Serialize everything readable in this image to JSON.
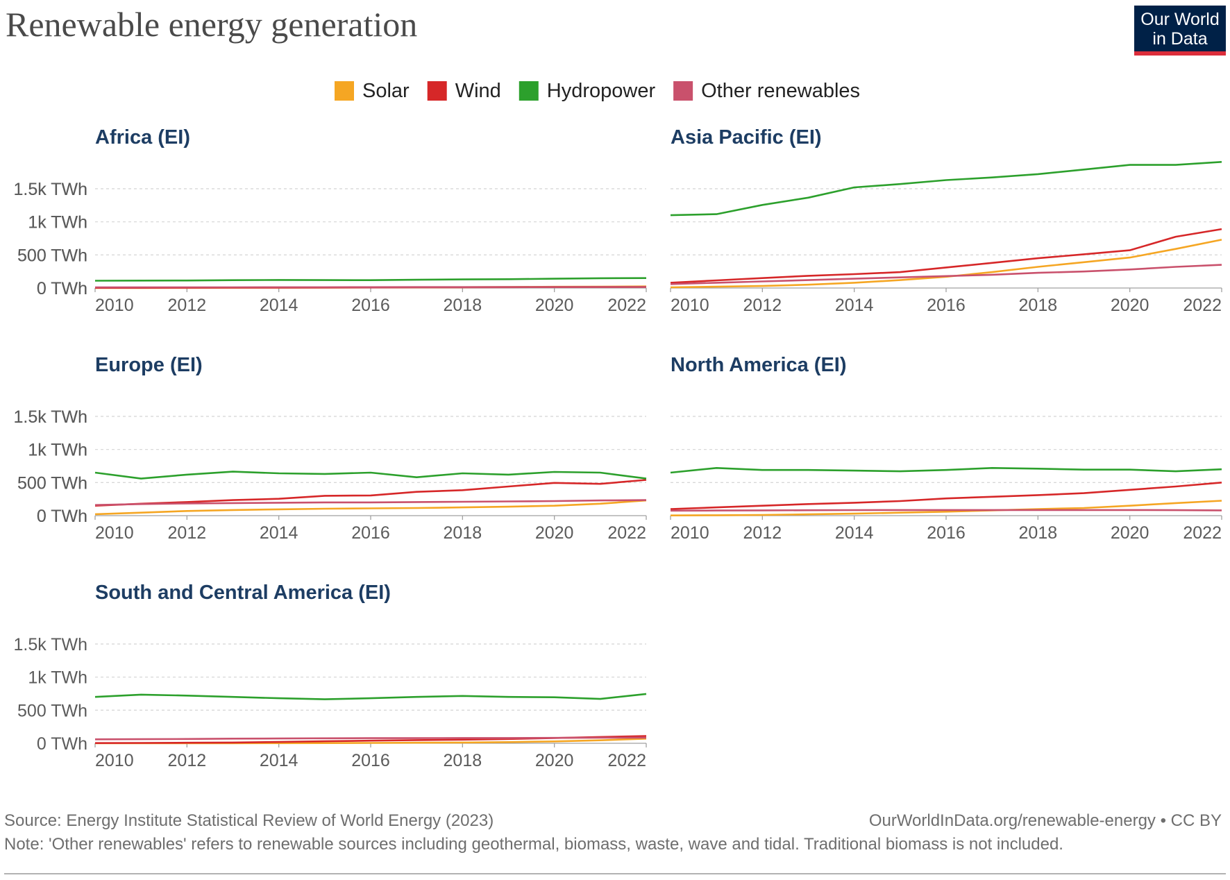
{
  "title": "Renewable energy generation",
  "logo": [
    "Our World",
    "in Data"
  ],
  "source": "Source: Energy Institute Statistical Review of World Energy (2023)",
  "url": "OurWorldInData.org/renewable-energy • CC BY",
  "note": "Note: 'Other renewables' refers to renewable sources including geothermal, biomass, waste, wave and tidal. Traditional biomass is not included.",
  "chart_data": [
    {
      "type": "line",
      "title": "Africa (EI)",
      "x": [
        2010,
        2011,
        2012,
        2013,
        2014,
        2015,
        2016,
        2017,
        2018,
        2019,
        2020,
        2021,
        2022
      ],
      "series": [
        {
          "name": "Solar",
          "color": "#f5a623",
          "values": [
            0,
            1,
            2,
            3,
            4,
            6,
            8,
            10,
            13,
            16,
            19,
            21,
            24
          ]
        },
        {
          "name": "Wind",
          "color": "#d62728",
          "values": [
            3,
            3,
            4,
            5,
            6,
            7,
            8,
            10,
            12,
            13,
            14,
            15,
            16
          ]
        },
        {
          "name": "Hydropower",
          "color": "#2ca02c",
          "values": [
            110,
            112,
            113,
            118,
            122,
            120,
            118,
            125,
            130,
            133,
            140,
            148,
            150
          ]
        },
        {
          "name": "Other renewables",
          "color": "#c9516c",
          "values": [
            10,
            10,
            11,
            11,
            12,
            12,
            13,
            14,
            14,
            15,
            15,
            16,
            16
          ]
        }
      ],
      "xlim": [
        2010,
        2022
      ],
      "xticks": [
        2010,
        2012,
        2014,
        2016,
        2018,
        2020,
        2022
      ],
      "ylim": [
        0,
        1950
      ],
      "yticks": [
        {
          "value": 0,
          "label": "0 TWh"
        },
        {
          "value": 500,
          "label": "500 TWh"
        },
        {
          "value": 1000,
          "label": "1k TWh"
        },
        {
          "value": 1500,
          "label": "1.5k TWh"
        }
      ],
      "grid": true
    },
    {
      "type": "line",
      "title": "Asia Pacific (EI)",
      "x": [
        2010,
        2011,
        2012,
        2013,
        2014,
        2015,
        2016,
        2017,
        2018,
        2019,
        2020,
        2021,
        2022
      ],
      "series": [
        {
          "name": "Solar",
          "color": "#f5a623",
          "values": [
            10,
            20,
            30,
            50,
            80,
            120,
            170,
            240,
            320,
            390,
            460,
            590,
            730
          ]
        },
        {
          "name": "Wind",
          "color": "#d62728",
          "values": [
            80,
            115,
            150,
            185,
            210,
            240,
            310,
            380,
            450,
            510,
            570,
            775,
            890
          ]
        },
        {
          "name": "Hydropower",
          "color": "#2ca02c",
          "values": [
            1100,
            1115,
            1255,
            1365,
            1520,
            1570,
            1630,
            1670,
            1720,
            1790,
            1860,
            1860,
            1905
          ]
        },
        {
          "name": "Other renewables",
          "color": "#c9516c",
          "values": [
            60,
            80,
            100,
            120,
            140,
            160,
            180,
            200,
            230,
            250,
            280,
            320,
            350
          ]
        }
      ],
      "xlim": [
        2010,
        2022
      ],
      "xticks": [
        2010,
        2012,
        2014,
        2016,
        2018,
        2020,
        2022
      ],
      "ylim": [
        0,
        1950
      ],
      "yticks": [
        {
          "value": 0,
          "label": "0 TWh"
        },
        {
          "value": 500,
          "label": "500 TWh"
        },
        {
          "value": 1000,
          "label": "1k TWh"
        },
        {
          "value": 1500,
          "label": "1.5k TWh"
        }
      ],
      "grid": true
    },
    {
      "type": "line",
      "title": "Europe (EI)",
      "x": [
        2010,
        2011,
        2012,
        2013,
        2014,
        2015,
        2016,
        2017,
        2018,
        2019,
        2020,
        2021,
        2022
      ],
      "series": [
        {
          "name": "Solar",
          "color": "#f5a623",
          "values": [
            22,
            45,
            70,
            85,
            95,
            105,
            110,
            115,
            125,
            135,
            150,
            180,
            230
          ]
        },
        {
          "name": "Wind",
          "color": "#d62728",
          "values": [
            150,
            180,
            205,
            235,
            255,
            300,
            305,
            360,
            385,
            440,
            495,
            480,
            540
          ]
        },
        {
          "name": "Hydropower",
          "color": "#2ca02c",
          "values": [
            650,
            560,
            620,
            665,
            640,
            630,
            650,
            580,
            640,
            620,
            660,
            650,
            560
          ]
        },
        {
          "name": "Other renewables",
          "color": "#c9516c",
          "values": [
            160,
            175,
            185,
            190,
            195,
            200,
            200,
            205,
            210,
            215,
            220,
            230,
            235
          ]
        }
      ],
      "xlim": [
        2010,
        2022
      ],
      "xticks": [
        2010,
        2012,
        2014,
        2016,
        2018,
        2020,
        2022
      ],
      "ylim": [
        0,
        1950
      ],
      "yticks": [
        {
          "value": 0,
          "label": "0 TWh"
        },
        {
          "value": 500,
          "label": "500 TWh"
        },
        {
          "value": 1000,
          "label": "1k TWh"
        },
        {
          "value": 1500,
          "label": "1.5k TWh"
        }
      ],
      "grid": true
    },
    {
      "type": "line",
      "title": "North America (EI)",
      "x": [
        2010,
        2011,
        2012,
        2013,
        2014,
        2015,
        2016,
        2017,
        2018,
        2019,
        2020,
        2021,
        2022
      ],
      "series": [
        {
          "name": "Solar",
          "color": "#f5a623",
          "values": [
            3,
            6,
            10,
            20,
            30,
            45,
            60,
            80,
            100,
            115,
            150,
            190,
            225
          ]
        },
        {
          "name": "Wind",
          "color": "#d62728",
          "values": [
            100,
            125,
            150,
            175,
            195,
            220,
            260,
            285,
            310,
            340,
            390,
            440,
            500
          ]
        },
        {
          "name": "Hydropower",
          "color": "#2ca02c",
          "values": [
            650,
            720,
            690,
            690,
            680,
            670,
            690,
            720,
            710,
            695,
            695,
            670,
            700
          ]
        },
        {
          "name": "Other renewables",
          "color": "#c9516c",
          "values": [
            75,
            78,
            80,
            82,
            84,
            85,
            85,
            85,
            85,
            85,
            85,
            83,
            80
          ]
        }
      ],
      "xlim": [
        2010,
        2022
      ],
      "xticks": [
        2010,
        2012,
        2014,
        2016,
        2018,
        2020,
        2022
      ],
      "ylim": [
        0,
        1950
      ],
      "yticks": [
        {
          "value": 0,
          "label": "0 TWh"
        },
        {
          "value": 500,
          "label": "500 TWh"
        },
        {
          "value": 1000,
          "label": "1k TWh"
        },
        {
          "value": 1500,
          "label": "1.5k TWh"
        }
      ],
      "grid": true
    },
    {
      "type": "line",
      "title": "South and Central America (EI)",
      "x": [
        2010,
        2011,
        2012,
        2013,
        2014,
        2015,
        2016,
        2017,
        2018,
        2019,
        2020,
        2021,
        2022
      ],
      "series": [
        {
          "name": "Solar",
          "color": "#f5a623",
          "values": [
            0,
            0,
            0,
            1,
            2,
            3,
            5,
            8,
            12,
            18,
            28,
            45,
            70
          ]
        },
        {
          "name": "Wind",
          "color": "#d62728",
          "values": [
            3,
            5,
            8,
            12,
            20,
            30,
            40,
            48,
            55,
            65,
            80,
            95,
            110
          ]
        },
        {
          "name": "Hydropower",
          "color": "#2ca02c",
          "values": [
            700,
            735,
            720,
            700,
            680,
            665,
            680,
            700,
            715,
            700,
            695,
            670,
            745
          ]
        },
        {
          "name": "Other renewables",
          "color": "#c9516c",
          "values": [
            60,
            62,
            65,
            70,
            72,
            75,
            78,
            78,
            80,
            80,
            82,
            85,
            85
          ]
        }
      ],
      "xlim": [
        2010,
        2022
      ],
      "xticks": [
        2010,
        2012,
        2014,
        2016,
        2018,
        2020,
        2022
      ],
      "ylim": [
        0,
        1950
      ],
      "yticks": [
        {
          "value": 0,
          "label": "0 TWh"
        },
        {
          "value": 500,
          "label": "500 TWh"
        },
        {
          "value": 1000,
          "label": "1k TWh"
        },
        {
          "value": 1500,
          "label": "1.5k TWh"
        }
      ],
      "grid": true
    }
  ]
}
